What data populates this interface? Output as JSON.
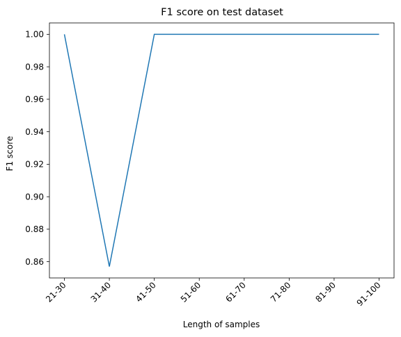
{
  "chart_data": {
    "type": "line",
    "title": "F1 score on test dataset",
    "xlabel": "Length of samples",
    "ylabel": "F1 score",
    "categories": [
      "21-30",
      "31-40",
      "41-50",
      "51-60",
      "61-70",
      "71-80",
      "81-90",
      "91-100"
    ],
    "series": [
      {
        "values": [
          1.0,
          0.857,
          1.0,
          1.0,
          1.0,
          1.0,
          1.0,
          1.0
        ],
        "color": "#1f77b4"
      }
    ],
    "ylim": [
      0.85,
      1.007
    ],
    "yticks": [
      0.86,
      0.88,
      0.9,
      0.92,
      0.94,
      0.96,
      0.98,
      1.0
    ],
    "ytick_labels": [
      "0.86",
      "0.88",
      "0.90",
      "0.92",
      "0.94",
      "0.96",
      "0.98",
      "1.00"
    ],
    "grid": false,
    "legend": "none"
  }
}
